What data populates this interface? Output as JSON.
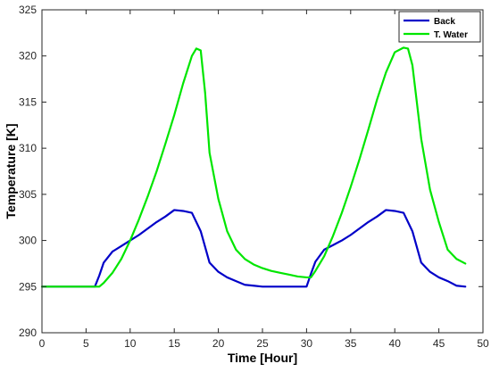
{
  "chart_data": {
    "type": "line",
    "title": "",
    "xlabel": "Time [Hour]",
    "ylabel": "Temperature [K]",
    "xlim": [
      0,
      50
    ],
    "ylim": [
      290,
      325
    ],
    "xticks": [
      0,
      5,
      10,
      15,
      20,
      25,
      30,
      35,
      40,
      45,
      50
    ],
    "yticks": [
      290,
      295,
      300,
      305,
      310,
      315,
      320,
      325
    ],
    "grid": false,
    "legend_position": "top-right",
    "series": [
      {
        "name": "Back",
        "color": "#0000c8",
        "x": [
          0,
          6,
          6.5,
          7,
          8,
          9,
          10,
          11,
          12,
          13,
          14,
          15,
          16,
          17,
          18,
          19,
          20,
          21,
          22,
          23,
          24,
          25,
          26,
          27,
          28,
          29,
          30,
          30.5,
          31,
          32,
          33,
          34,
          35,
          36,
          37,
          38,
          39,
          40,
          41,
          42,
          43,
          44,
          45,
          46,
          47,
          48
        ],
        "y": [
          295,
          295,
          296.2,
          297.6,
          298.8,
          299.4,
          300,
          300.6,
          301.3,
          302,
          302.6,
          303.3,
          303.2,
          303,
          301,
          297.6,
          296.6,
          296,
          295.6,
          295.2,
          295.1,
          295.0,
          295.0,
          295.0,
          295.0,
          295.0,
          295.0,
          296.4,
          297.7,
          299,
          299.5,
          300,
          300.6,
          301.3,
          302,
          302.6,
          303.3,
          303.2,
          303,
          301,
          297.6,
          296.6,
          296,
          295.6,
          295.1,
          295
        ]
      },
      {
        "name": "T. Water",
        "color": "#00e600",
        "x": [
          0,
          6,
          6.5,
          7,
          8,
          9,
          10,
          11,
          12,
          13,
          14,
          15,
          16,
          17,
          17.5,
          18,
          18.5,
          19,
          20,
          21,
          22,
          23,
          24,
          25,
          26,
          27,
          28,
          29,
          30,
          30.5,
          31,
          32,
          33,
          34,
          35,
          36,
          37,
          38,
          39,
          40,
          41,
          41.5,
          42,
          42.5,
          43,
          44,
          45,
          46,
          47,
          48
        ],
        "y": [
          295,
          295,
          295,
          295.4,
          296.5,
          298,
          300,
          302.3,
          304.8,
          307.5,
          310.5,
          313.6,
          317,
          320,
          320.8,
          320.6,
          316,
          309.5,
          304.5,
          301,
          299,
          298,
          297.4,
          297,
          296.7,
          296.5,
          296.3,
          296.1,
          296,
          296,
          296.7,
          298.3,
          300.5,
          303,
          305.8,
          308.8,
          312,
          315.3,
          318.2,
          320.4,
          320.9,
          320.8,
          319,
          315,
          311,
          305.5,
          302,
          299,
          298,
          297.5
        ]
      }
    ]
  }
}
